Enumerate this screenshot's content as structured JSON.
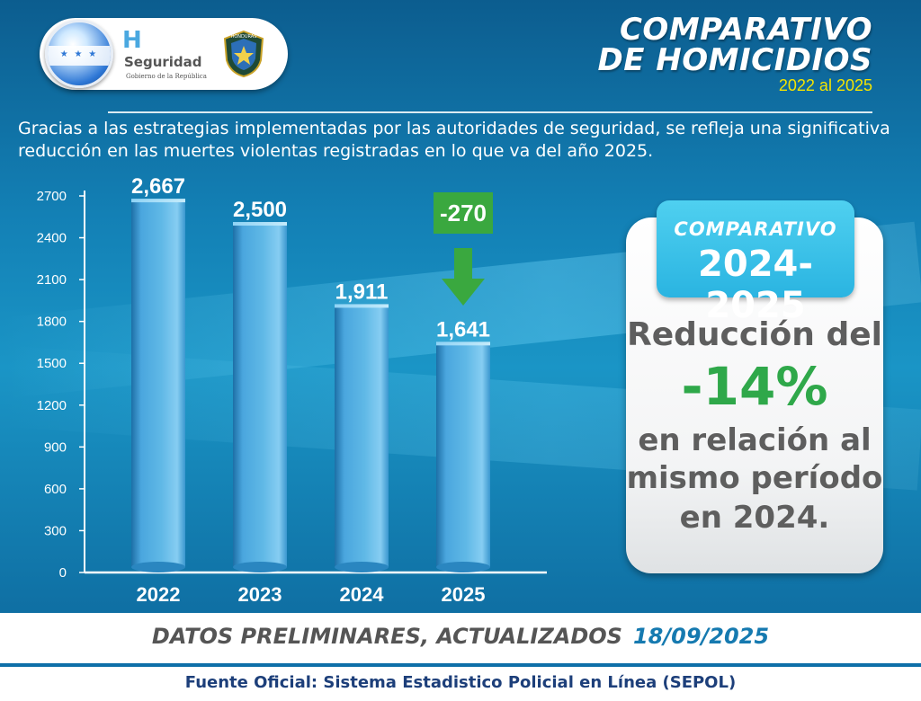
{
  "logo": {
    "brand_letter": "H",
    "brand_name": "Seguridad",
    "brand_sub": "Gobierno de la República",
    "badge_text": "HONDURAS"
  },
  "header": {
    "title_line1": "COMPARATIVO",
    "title_line2": "DE HOMICIDIOS",
    "period": "2022 al 2025"
  },
  "intro": "Gracias a las estrategias implementadas por las autoridades de seguridad, se refleja una significativa reducción en las muertes violentas registradas en lo que va del año 2025.",
  "chart_data": {
    "type": "bar",
    "categories": [
      "2022",
      "2023",
      "2024",
      "2025"
    ],
    "values": [
      2667,
      2500,
      1911,
      1641
    ],
    "value_labels": [
      "2,667",
      "2,500",
      "1,911",
      "1,641"
    ],
    "yticks": [
      0,
      300,
      600,
      900,
      1200,
      1500,
      1800,
      2100,
      2400,
      2700
    ],
    "ylim": [
      0,
      2700
    ],
    "annotation": {
      "text": "-270",
      "category": "2025",
      "color": "#3aa83f"
    },
    "bar_color": "#5fb8e6"
  },
  "card": {
    "header_small": "COMPARATIVO",
    "header_big": "2024-2025",
    "line1": "Reducción del",
    "percent": "-14%",
    "line2": "en relación al",
    "line3": "mismo período",
    "line4": "en 2024."
  },
  "footer": {
    "preliminary": "DATOS PRELIMINARES, ACTUALIZADOS",
    "date": "18/09/2025",
    "source": "Fuente Oficial: Sistema Estadistico Policial en Línea (SEPOL)"
  },
  "colors": {
    "background": "#1380b5",
    "title": "#ffffff",
    "period": "#f5e400",
    "percent": "#2fa84a",
    "card_header": "#2ab4e1"
  }
}
